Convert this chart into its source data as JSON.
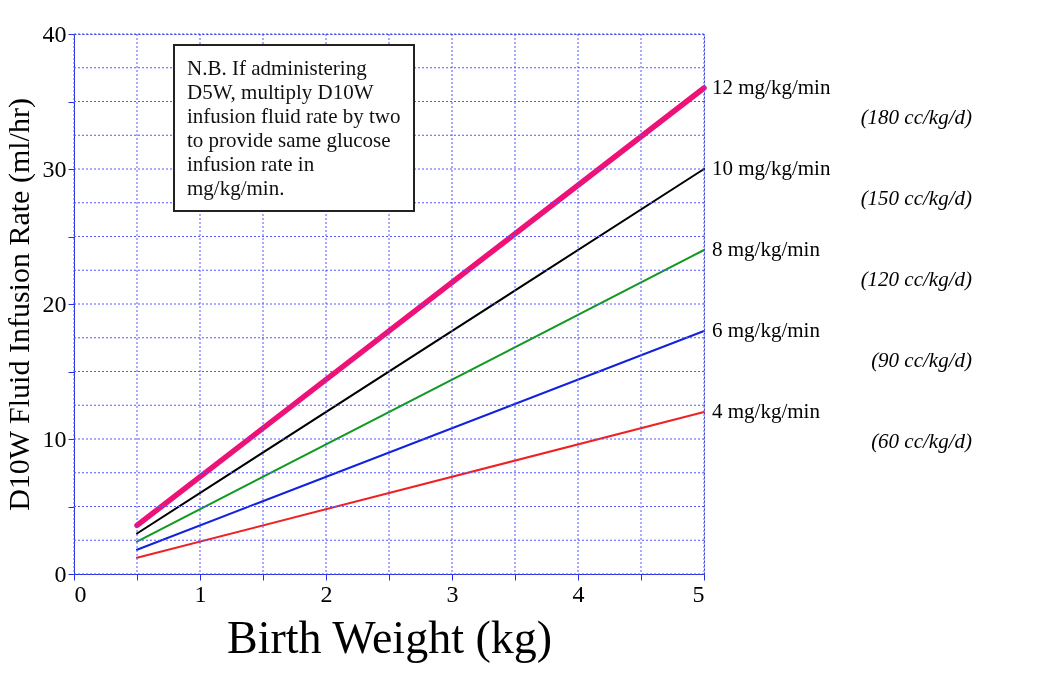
{
  "chart_data": {
    "type": "line",
    "xlabel": "Birth Weight (kg)",
    "ylabel": "D10W Fluid Infusion Rate (ml/hr)",
    "x": [
      0.5,
      5
    ],
    "series": [
      {
        "name": "12 mg/kg/min",
        "color": "#ee1177",
        "values": [
          3.6,
          36
        ]
      },
      {
        "name": "10 mg/kg/min",
        "color": "#000000",
        "values": [
          3,
          30
        ]
      },
      {
        "name": "8 mg/kg/min",
        "color": "#119922",
        "values": [
          2.4,
          24
        ]
      },
      {
        "name": "6 mg/kg/min",
        "color": "#1122dd",
        "values": [
          1.8,
          18
        ]
      },
      {
        "name": "4 mg/kg/min",
        "color": "#ee2222",
        "values": [
          1.2,
          12
        ]
      }
    ],
    "xlim": [
      0,
      5
    ],
    "ylim": [
      0,
      40
    ],
    "xticks": [
      0,
      {
        "value": 0.5,
        "label": null
      },
      1,
      {
        "value": 1.5,
        "label": null
      },
      2,
      {
        "value": 2.5,
        "label": null
      },
      3,
      {
        "value": 3.5,
        "label": null
      },
      4,
      {
        "value": 4.5,
        "label": null
      },
      5
    ],
    "yticks": [
      0,
      {
        "value": 2.5,
        "label": null
      },
      {
        "value": 5,
        "label": null
      },
      {
        "value": 7.5,
        "label": null
      },
      10,
      {
        "value": 12.5,
        "label": null
      },
      {
        "value": 15,
        "label": null
      },
      {
        "value": 17.5,
        "label": null
      },
      20,
      {
        "value": 22.5,
        "label": null
      },
      {
        "value": 25,
        "label": null
      },
      {
        "value": 27.5,
        "label": null
      },
      30,
      {
        "value": 32.5,
        "label": null
      },
      {
        "value": 35,
        "label": null
      },
      {
        "value": 37.5,
        "label": null
      },
      40
    ],
    "grid": true,
    "legend": false,
    "marker": "none",
    "line_style": "solid",
    "annotations": [
      "N.B. If administering D5W, multiply D10W infusion fluid rate by two to provide same glucose infusion rate in mg/kg/min.",
      "(180 cc/kg/d)",
      "(150 cc/kg/d)",
      "(120 cc/kg/d)",
      "(90 cc/kg/d)",
      "(60 cc/kg/d)"
    ]
  }
}
